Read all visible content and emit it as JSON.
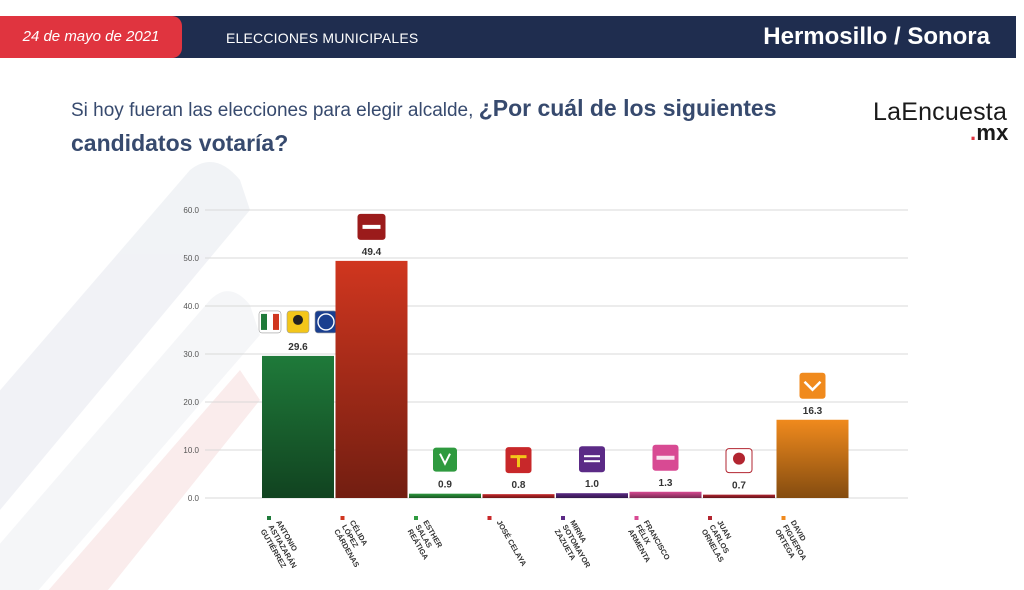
{
  "header": {
    "date": "24 de mayo de 2021",
    "section": "ELECCIONES MUNICIPALES",
    "location": "Hermosillo / Sonora"
  },
  "question": {
    "part1": "Si hoy fueran las elecciones para elegir alcalde, ",
    "part2": "¿Por cuál de los siguientes candidatos votaría?"
  },
  "logo": {
    "main": "LaEncuesta",
    "dot": ".",
    "suffix": "mx"
  },
  "colors": {
    "header": "#1f2d4f",
    "accent": "#e0343f"
  },
  "chart_data": {
    "type": "bar",
    "ylim": [
      0,
      60
    ],
    "yticks": [
      "0.0",
      "10.0",
      "20.0",
      "30.0",
      "40.0",
      "50.0",
      "60.0"
    ],
    "grid": true,
    "categories": [
      "ANTONIO ASTIAZARÁN GUTIÉRREZ",
      "CÉLIDA LÓPEZ CÁRDENAS",
      "ESTHER SALAS REÁTIGA",
      "JOSÉ CELAYA",
      "MIRNA SOTOMAYOR ZAZUETA",
      "FRANCISCO FÉLIX ARMENTA",
      "JUAN CARLOS ORNELAS",
      "DAVID FIGUEROA ORTEGA"
    ],
    "values": [
      29.6,
      49.4,
      0.9,
      0.8,
      1.0,
      1.3,
      0.7,
      16.3
    ],
    "value_labels": [
      "29.6",
      "49.4",
      "0.9",
      "0.8",
      "1.0",
      "1.3",
      "0.7",
      "16.3"
    ],
    "bar_colors": [
      "#1f7a3a",
      "#d0361f",
      "#2f9a3f",
      "#c8282a",
      "#5b2a86",
      "#d84a93",
      "#b22530",
      "#f08a1d"
    ],
    "parties": [
      "PRI PRD PAN",
      "morena",
      "VERDE",
      "PT",
      "PES",
      "FUERZA MÉXICO",
      "RSP",
      "MC"
    ]
  }
}
